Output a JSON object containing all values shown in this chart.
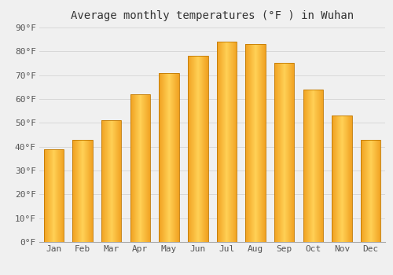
{
  "title": "Average monthly temperatures (°F ) in Wuhan",
  "months": [
    "Jan",
    "Feb",
    "Mar",
    "Apr",
    "May",
    "Jun",
    "Jul",
    "Aug",
    "Sep",
    "Oct",
    "Nov",
    "Dec"
  ],
  "values": [
    39,
    43,
    51,
    62,
    71,
    78,
    84,
    83,
    75,
    64,
    53,
    43
  ],
  "bar_color_center": "#FFD055",
  "bar_color_edge": "#F0A020",
  "bar_border_color": "#C07800",
  "ylim": [
    0,
    90
  ],
  "yticks": [
    0,
    10,
    20,
    30,
    40,
    50,
    60,
    70,
    80,
    90
  ],
  "ytick_labels": [
    "0°F",
    "10°F",
    "20°F",
    "30°F",
    "40°F",
    "50°F",
    "60°F",
    "70°F",
    "80°F",
    "90°F"
  ],
  "background_color": "#F0F0F0",
  "grid_color": "#D8D8D8",
  "title_fontsize": 10,
  "tick_fontsize": 8,
  "font_family": "monospace"
}
